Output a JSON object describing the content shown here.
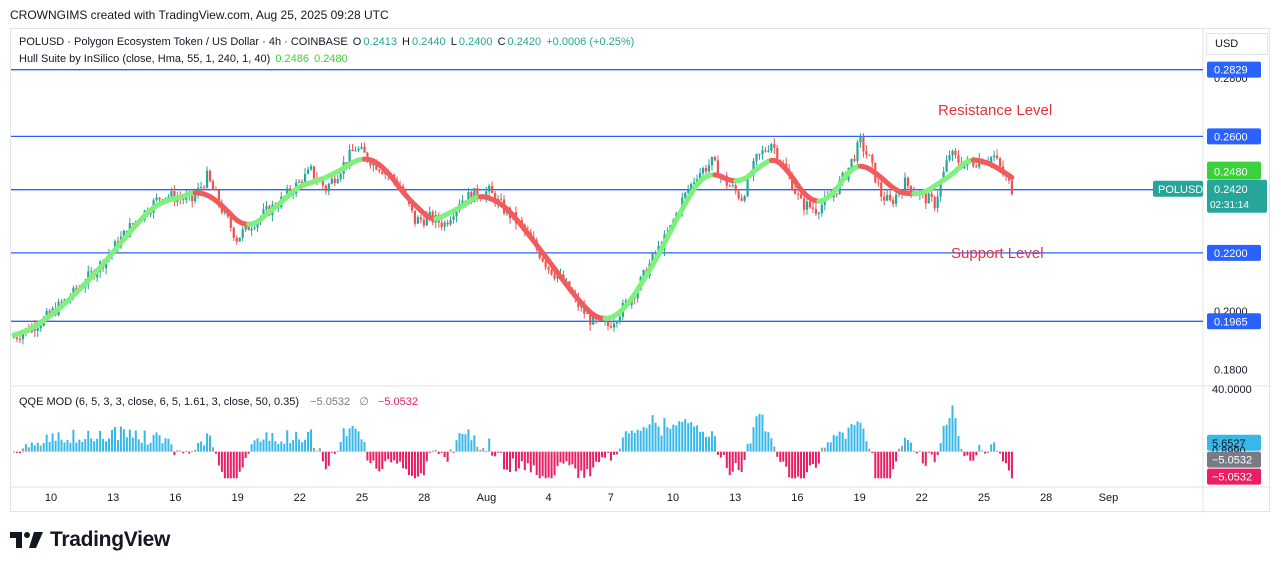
{
  "header": {
    "title": "CROWNGIMS created with TradingView.com, Aug 25, 2025 09:28 UTC"
  },
  "legend": {
    "symbol": "POLUSD · Polygon Ecosystem Token / US Dollar · 4h · COINBASE",
    "o_label": "O",
    "o_value": "0.2413",
    "h_label": "H",
    "h_value": "0.2440",
    "l_label": "L",
    "l_value": "0.2400",
    "c_label": "C",
    "c_value": "0.2420",
    "change": "+0.0006 (+0.25%)",
    "indicator": "Hull Suite by InSilico (close, Hma, 55, 1, 240, 1, 40)",
    "ind_v1": "0.2486",
    "ind_v2": "0.2480",
    "qqe": "QQE MOD (6, 5, 3, 3, close, 6, 5, 1.61, 3, close, 50, 0.35)",
    "qqe_v1": "−5.0532",
    "qqe_sym": "∅",
    "qqe_v2": "−5.0532"
  },
  "currency_button": "USD",
  "annotations": {
    "resistance": "Resistance Level",
    "support": "Support Level"
  },
  "colors": {
    "up": "#26a69a",
    "down": "#ef5350",
    "level": "#2962ff",
    "hull_up": "#7ef07e",
    "hull_down": "#f25b5b",
    "qqe_blue": "#37b8e8",
    "qqe_gray": "#9e9e9e",
    "qqe_pink": "#e91e63",
    "annotation": "#e2353d"
  },
  "chart_data": {
    "type": "candlestick",
    "symbol_tag": "POLUSD",
    "countdown": "02:31:14",
    "price_axis": {
      "ylim": [
        0.176,
        0.29
      ],
      "ticks": [
        "0.2800",
        "0.2000",
        "0.1800"
      ],
      "labels": [
        {
          "text": "0.2829",
          "value": 0.2829,
          "color": "#2962ff"
        },
        {
          "text": "0.2600",
          "value": 0.26,
          "color": "#2962ff"
        },
        {
          "text": "0.2486",
          "value": 0.2486,
          "color": "#3ad13a"
        },
        {
          "text": "0.2480",
          "value": 0.248,
          "color": "#3ad13a"
        },
        {
          "text": "0.2417",
          "value": 0.2417,
          "color": "#2962ff"
        },
        {
          "text": "0.2200",
          "value": 0.22,
          "color": "#2962ff"
        },
        {
          "text": "0.1965",
          "value": 0.1965,
          "color": "#2962ff"
        }
      ],
      "last": {
        "text": "0.2420",
        "value": 0.242
      }
    },
    "horizontal_levels": [
      0.2829,
      0.26,
      0.2417,
      0.22,
      0.1965
    ],
    "time_axis": [
      "10",
      "13",
      "16",
      "19",
      "22",
      "25",
      "28",
      "Aug",
      "4",
      "7",
      "10",
      "13",
      "16",
      "19",
      "22",
      "25",
      "28",
      "Sep"
    ],
    "price_path": [
      [
        0,
        0.191
      ],
      [
        10,
        0.197
      ],
      [
        20,
        0.206
      ],
      [
        30,
        0.217
      ],
      [
        40,
        0.23
      ],
      [
        50,
        0.24
      ],
      [
        60,
        0.238
      ],
      [
        65,
        0.246
      ],
      [
        70,
        0.235
      ],
      [
        75,
        0.225
      ],
      [
        80,
        0.23
      ],
      [
        90,
        0.238
      ],
      [
        100,
        0.248
      ],
      [
        105,
        0.242
      ],
      [
        115,
        0.256
      ],
      [
        120,
        0.252
      ],
      [
        125,
        0.248
      ],
      [
        130,
        0.243
      ],
      [
        135,
        0.231
      ],
      [
        140,
        0.232
      ],
      [
        145,
        0.23
      ],
      [
        150,
        0.238
      ],
      [
        155,
        0.24
      ],
      [
        160,
        0.241
      ],
      [
        165,
        0.235
      ],
      [
        170,
        0.23
      ],
      [
        175,
        0.223
      ],
      [
        180,
        0.215
      ],
      [
        185,
        0.21
      ],
      [
        190,
        0.202
      ],
      [
        195,
        0.196
      ],
      [
        200,
        0.195
      ],
      [
        205,
        0.201
      ],
      [
        210,
        0.208
      ],
      [
        215,
        0.218
      ],
      [
        220,
        0.226
      ],
      [
        225,
        0.238
      ],
      [
        230,
        0.247
      ],
      [
        235,
        0.251
      ],
      [
        240,
        0.244
      ],
      [
        245,
        0.239
      ],
      [
        250,
        0.252
      ],
      [
        255,
        0.258
      ],
      [
        260,
        0.248
      ],
      [
        265,
        0.237
      ],
      [
        270,
        0.235
      ],
      [
        275,
        0.239
      ],
      [
        280,
        0.247
      ],
      [
        285,
        0.258
      ],
      [
        288,
        0.252
      ],
      [
        292,
        0.24
      ],
      [
        295,
        0.237
      ],
      [
        300,
        0.244
      ],
      [
        305,
        0.24
      ],
      [
        310,
        0.237
      ],
      [
        315,
        0.254
      ],
      [
        320,
        0.25
      ],
      [
        325,
        0.252
      ],
      [
        330,
        0.253
      ],
      [
        333,
        0.247
      ],
      [
        336,
        0.242
      ]
    ],
    "qqe_ylim": [
      -20,
      40
    ],
    "qqe_axis": [
      {
        "text": "40.0000",
        "value": 40,
        "bg": "",
        "color": "#131722"
      },
      {
        "text": "5.6527",
        "value": 5.6527,
        "bg": "#37b8e8",
        "color": "#131722"
      },
      {
        "text": "0.8990",
        "value": 0.899,
        "bg": "",
        "color": "#131722"
      },
      {
        "text": "−5.0532",
        "value": -5.0532,
        "bg": "#787b86",
        "color": "#ffffff"
      },
      {
        "text": "−5.0532",
        "value": -5.0532,
        "bg": "#e91e63",
        "color": "#ffffff"
      }
    ]
  }
}
